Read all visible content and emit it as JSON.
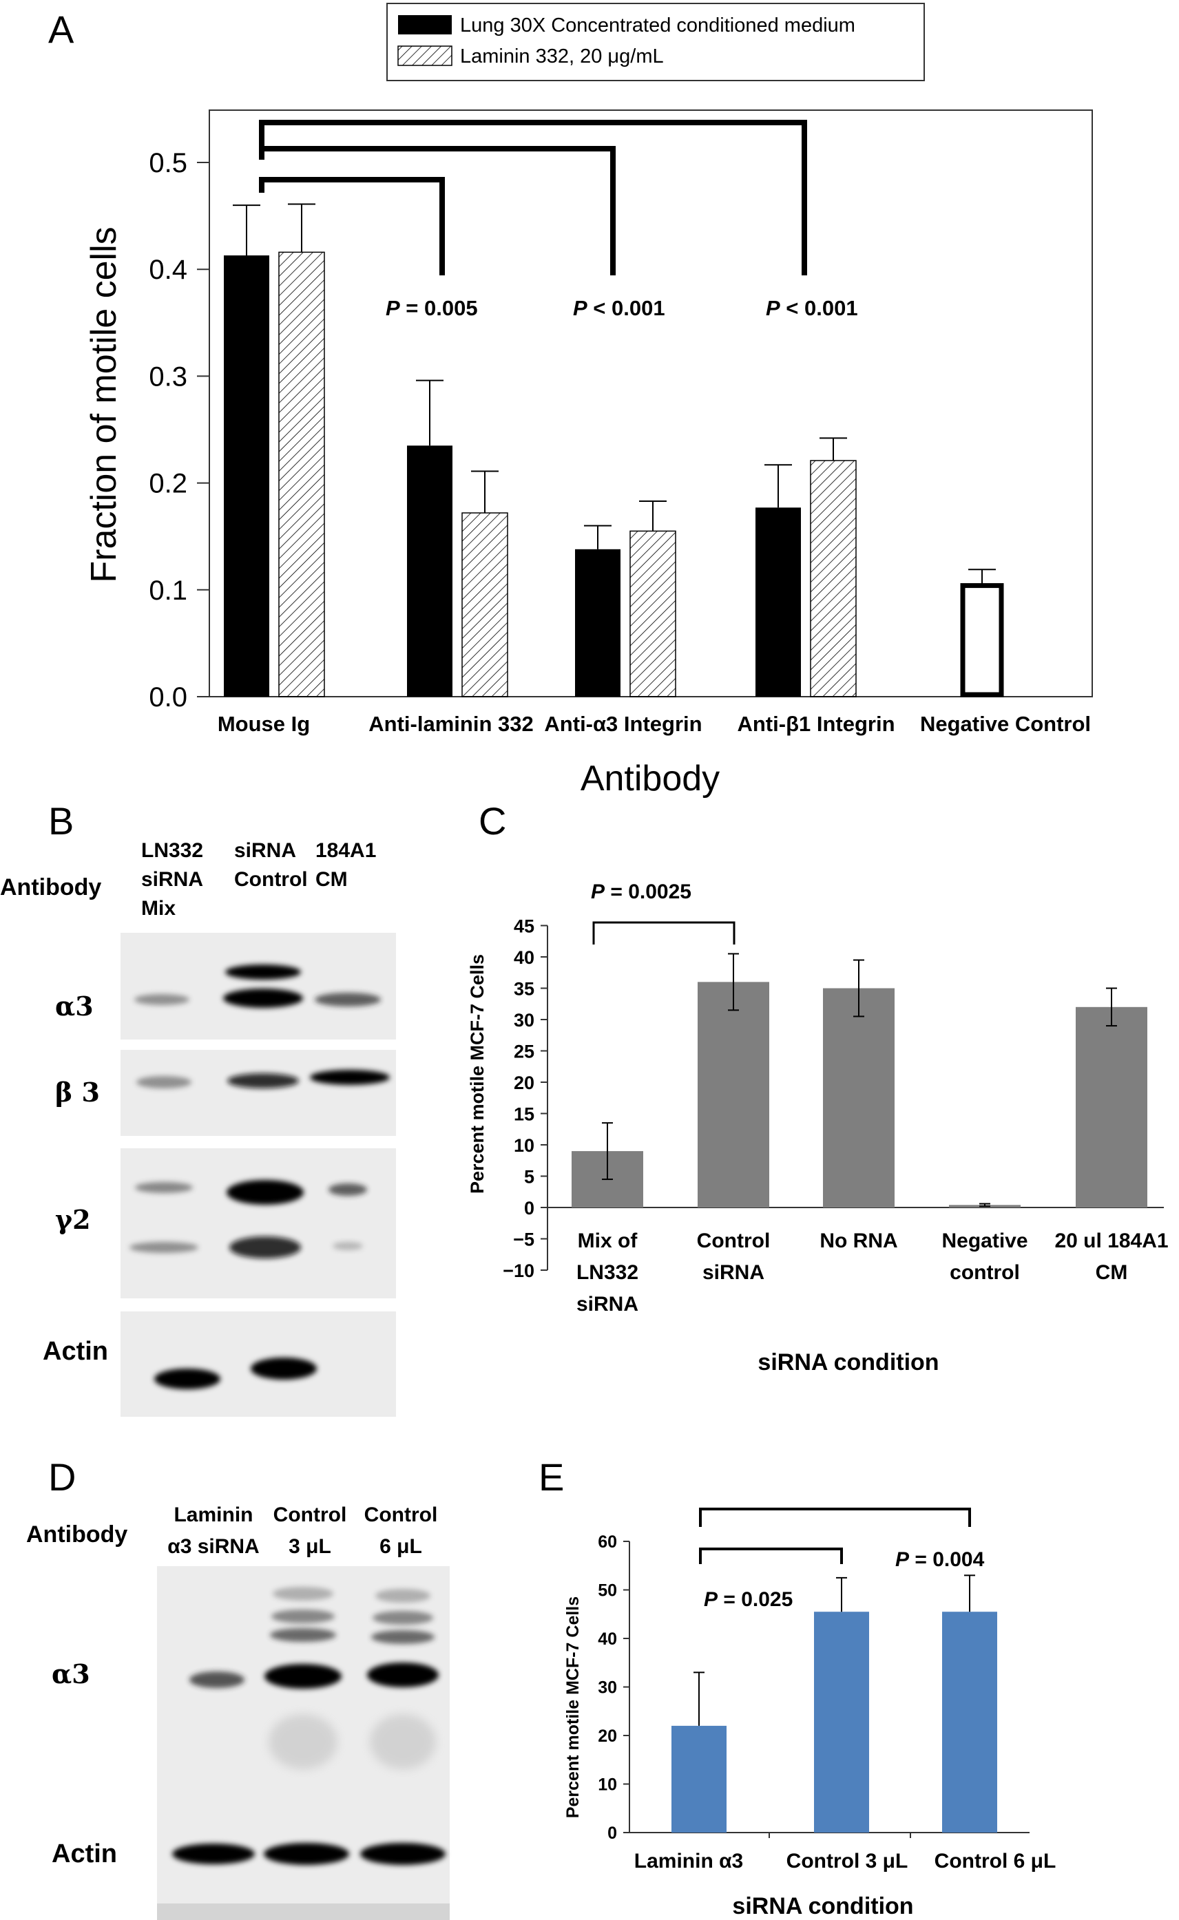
{
  "panelA": {
    "letter": "A",
    "legend": [
      {
        "name": "Lung 30X Concentrated conditioned medium",
        "swatch": "solid"
      },
      {
        "name": "Laminin 332, 20 μg/mL",
        "swatch": "hatched"
      }
    ],
    "pvalues": [
      {
        "prefix": "P",
        "text": " = 0.005"
      },
      {
        "prefix": "P",
        "text": " < 0.001"
      },
      {
        "prefix": "P",
        "text": " < 0.001"
      }
    ],
    "colors": {
      "solid": "#000000",
      "hatch": "#000000",
      "negative": "#000000"
    }
  },
  "panelB": {
    "letter": "B",
    "antibody_label": "Antibody",
    "lanes": [
      [
        "LN332",
        "siRNA",
        "Mix"
      ],
      [
        "siRNA",
        "Control"
      ],
      [
        "184A1",
        "CM"
      ]
    ],
    "blots": [
      "α3",
      "β 3",
      "γ2",
      "Actin"
    ]
  },
  "panelC": {
    "letter": "C",
    "pvalue": {
      "prefix": "P",
      "text": " = 0.0025"
    },
    "bar_color": "#7f7f7f"
  },
  "panelD": {
    "letter": "D",
    "antibody_label": "Antibody",
    "lanes": [
      [
        "Laminin",
        "α3 siRNA"
      ],
      [
        "Control",
        "3 μL"
      ],
      [
        "Control",
        "6 μL"
      ]
    ],
    "blots": [
      "α3",
      "Actin"
    ]
  },
  "panelE": {
    "letter": "E",
    "pvalues": [
      {
        "prefix": "P",
        "text": " = 0.025"
      },
      {
        "prefix": "P",
        "text": " = 0.004"
      }
    ],
    "bar_color": "#4f81bd"
  },
  "chart_data": [
    {
      "id": "A",
      "type": "bar",
      "title": "",
      "xlabel": "Antibody",
      "ylabel": "Fraction of motile cells",
      "ylim": [
        0,
        0.55
      ],
      "yticks": [
        "0.0",
        "0.1",
        "0.2",
        "0.3",
        "0.4",
        "0.5"
      ],
      "categories": [
        "Mouse Ig",
        "Anti-laminin 332",
        "Anti-α3 Integrin",
        "Anti-β1 Integrin",
        "Negative Control"
      ],
      "series": [
        {
          "name": "Lung 30X Concentrated conditioned medium",
          "values": [
            0.413,
            0.235,
            0.138,
            0.177,
            null
          ],
          "errors": [
            0.047,
            0.061,
            0.022,
            0.04,
            null
          ]
        },
        {
          "name": "Laminin 332, 20 μg/mL",
          "values": [
            0.416,
            0.172,
            0.155,
            0.221,
            null
          ],
          "errors": [
            0.045,
            0.039,
            0.028,
            0.021,
            null
          ]
        }
      ],
      "negative_control": {
        "value": 0.104,
        "error": 0.015
      },
      "legend": "top-center"
    },
    {
      "id": "C",
      "type": "bar",
      "title": "",
      "xlabel": "siRNA condition",
      "ylabel": "Percent motile MCF-7 Cells",
      "ylim": [
        -10,
        45
      ],
      "yticks": [
        "−10",
        "−5",
        "0",
        "5",
        "10",
        "15",
        "20",
        "25",
        "30",
        "35",
        "40",
        "45"
      ],
      "categories": [
        [
          "Mix of",
          "LN332",
          "siRNA"
        ],
        [
          "Control",
          "siRNA"
        ],
        [
          "No RNA"
        ],
        [
          "Negative",
          "control"
        ],
        [
          "20 ul 184A1",
          "CM"
        ]
      ],
      "values": [
        9,
        36,
        35,
        0.4,
        32
      ],
      "errors": [
        4.5,
        4.5,
        4.5,
        0.2,
        3
      ]
    },
    {
      "id": "E",
      "type": "bar",
      "title": "",
      "xlabel": "siRNA condition",
      "ylabel": "Percent motile MCF-7 Cells",
      "ylim": [
        0,
        60
      ],
      "yticks": [
        "0",
        "10",
        "20",
        "30",
        "40",
        "50",
        "60"
      ],
      "categories": [
        "Laminin α3",
        "Control 3 μL",
        "Control 6 μL"
      ],
      "values": [
        22,
        45.5,
        45.5
      ],
      "errors": [
        11,
        7,
        7.5
      ]
    }
  ]
}
